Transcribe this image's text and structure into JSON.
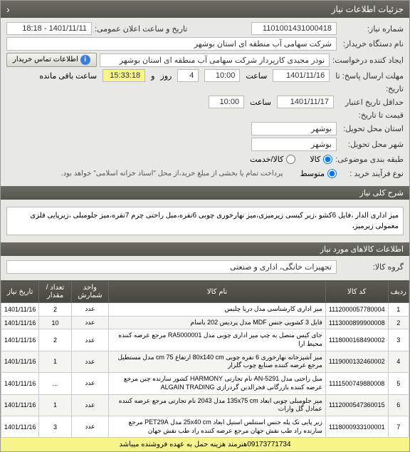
{
  "header": {
    "title": "جزئیات اطلاعات نیاز"
  },
  "form": {
    "need_number_label": "شماره نیاز:",
    "need_number": "1101001431000418",
    "announce_datetime_label": "تاریخ و ساعت اعلان عمومی:",
    "announce_datetime": "1401/11/11 - 18:18",
    "buyer_device_label": "نام دستگاه خریدار:",
    "buyer_device": "شرکت سهامی آب منطقه ای استان بوشهر",
    "creator_label": "ایجاد کننده درخواست:",
    "creator": "نوذر مجیدی کارپرداز شرکت سهامی آب منطقه ای استان بوشهر",
    "buyer_contact_button": "اطلاعات تماس خریدار",
    "deadline_label": "مهلت ارسال پاسخ: تا",
    "deadline_date": "1401/11/16",
    "time_label": "ساعت",
    "deadline_time": "10:00",
    "and_label": "و",
    "day_label": "روز",
    "days": "4",
    "remain_label": "ساعت باقی مانده",
    "remain_time": "15:33:18",
    "history_label": "تاریخ:",
    "credit_start_label": "حداقل تاریخ اعتبار",
    "credit_date": "1401/11/17",
    "credit_time": "10:00",
    "price_until_label": "قیمت تا تاریخ:",
    "delivery_province_label": "استان محل تحویل:",
    "delivery_province": "بوشهر",
    "delivery_city_label": "شهر محل تحویل:",
    "delivery_city": "بوشهر",
    "goods_class_label": "طبقه بندی موضوعی:",
    "goods_radio": "کالا",
    "service_radio": "کالا/خدمت",
    "purchase_type_label": "نوع فرآیند خرید :",
    "avg_radio": "متوسط",
    "payment_note": "پرداخت تمام یا بخشی از مبلغ خرید،از محل \"اسناد خزانه اسلامی\" خواهد بود."
  },
  "sections": {
    "general_desc_title": "شرح کلی نیاز",
    "general_desc": "میز اداری الدار ،فایل 6کشو ،زیر کیسی زیرمیزی،میز نهارخوری چوبی 6نفره،مبل راحتی چرم 7نفره،میز جلومبلی ،زیرپایی فلزی معمولی زیرمیز،",
    "goods_info_title": "اطلاعات کالاهای مورد نیاز",
    "group_label": "گروه کالا:",
    "group_value": "تجهیزات خانگی، اداری و صنعتی"
  },
  "table": {
    "headers": {
      "row": "ردیف",
      "code": "کد کالا",
      "name": "نام کالا",
      "unit": "واحد شمارش",
      "qty": "تعداد / مقدار",
      "need_date": "تاریخ نیاز"
    },
    "rows": [
      {
        "r": "1",
        "code": "1112000057780004",
        "name": "میز اداری کارشناسی مدل دریا چلیس",
        "unit": "عدد",
        "qty": "2",
        "date": "1401/11/16"
      },
      {
        "r": "2",
        "code": "1113000899900008",
        "name": "فایل 3 کشویی جنس MDF مدل پردیس 202 باسام",
        "unit": "عدد",
        "qty": "10",
        "date": "1401/11/16"
      },
      {
        "r": "3",
        "code": "1118000168490002",
        "name": "جای کیس متصل به چپ میز اداری چوبی مدل RA5000001 مرجع عرضه کننده محیط ارا",
        "unit": "عدد",
        "qty": "2",
        "date": "1401/11/16"
      },
      {
        "r": "4",
        "code": "1119000132460002",
        "name": "میز آشپزخانه نهارخوری 6 نفره چوبی 80x140 cm ارتفاع 75 cm مدل مستطیل مرجع عرضه کننده صنایع چوب گلزار",
        "unit": "عدد",
        "qty": "1",
        "date": "1401/11/16"
      },
      {
        "r": "5",
        "code": "1111500749880008",
        "name": "مبل راحتی مدل AN-5291 نام تجارتی HARMONY کشور سازنده چین مرجع عرضه کننده بازرگانی فخرالدین گردرازی ALGAIN TRADING",
        "unit": "عدد",
        "qty": "...",
        "date": "1401/11/16"
      },
      {
        "r": "6",
        "code": "1112000547360015",
        "name": "میز جلومبلی چوبی ابعاد 135x75 cm مدل 2043 نام تجارتی مرجع عرضه کننده عمادل گل وارات",
        "unit": "عدد",
        "qty": "1",
        "date": "1401/11/16"
      },
      {
        "r": "7",
        "code": "1118000933100001",
        "name": "زیر پایی تک پله جنس استنلس استیل ابعاد 25x40 cm مدل PET29A مرجع سازنده راد طب نقش جهان مرجع عرضه کننده راد طب نقش جهان",
        "unit": "عدد",
        "qty": "3",
        "date": "1401/11/16"
      }
    ]
  },
  "footer": {
    "note": "09173771734هنرمند هزینه حمل به عهده فروشنده میباشد"
  },
  "colors": {
    "header_bg": "#5a5a52",
    "yellow_bg": "#f5f58a",
    "white": "#ffffff",
    "border": "#bbbbbb"
  }
}
